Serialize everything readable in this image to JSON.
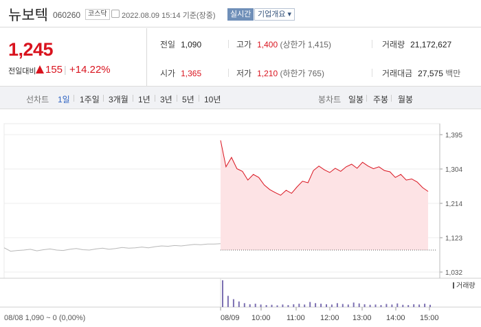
{
  "stock": {
    "name": "뉴보텍",
    "code": "060260",
    "market": "코스닥",
    "date_text": "2022.08.09 15:14 기준(장중)",
    "realtime_label": "실시간",
    "company_btn": "기업개요 ▾"
  },
  "price": {
    "current": "1,245",
    "change_label": "전일대비",
    "change": "155",
    "change_pct": "+14.22%"
  },
  "stats": {
    "prev_label": "전일",
    "prev": "1,090",
    "high_label": "고가",
    "high": "1,400",
    "upper_limit": "(상한가 1,415)",
    "volume_label": "거래량",
    "volume": "21,172,627",
    "open_label": "시가",
    "open": "1,365",
    "low_label": "저가",
    "low": "1,210",
    "lower_limit": "(하한가 765)",
    "amount_label": "거래대금",
    "amount": "27,575",
    "amount_unit": "백만"
  },
  "tabs": {
    "line_label": "선차트",
    "line": [
      "1일",
      "1주일",
      "3개월",
      "1년",
      "3년",
      "5년",
      "10년"
    ],
    "candle_label": "봉차트",
    "candle": [
      "일봉",
      "주봉",
      "월봉"
    ]
  },
  "colors": {
    "up": "#d9131e",
    "accent": "#2e63c2",
    "prev_line": "#b7b7b7",
    "area": "#fde3e5",
    "volume": "#7b6fb1"
  },
  "chart_data": {
    "type": "area",
    "y_ticks": [
      "1,395",
      "1,304",
      "1,214",
      "1,123",
      "1,032"
    ],
    "ylim": [
      1032,
      1395
    ],
    "x_ticks": [
      "08/09",
      "10:00",
      "11:00",
      "12:00",
      "13:00",
      "14:00",
      "15:00"
    ],
    "prev_day_label": "08/08 1,090 ~ 0 (0,00%)",
    "volume_label": "거래량",
    "prev_close": 1090,
    "prev_day": [
      1096,
      1087,
      1089,
      1090,
      1092,
      1088,
      1091,
      1093,
      1090,
      1089,
      1092,
      1094,
      1091,
      1090,
      1093,
      1095,
      1092,
      1094,
      1097,
      1095,
      1096,
      1098,
      1096,
      1099,
      1101,
      1100,
      1102,
      1101,
      1103,
      1105,
      1104,
      1106,
      1106,
      1107
    ],
    "today_times": [
      "09:00",
      "09:10",
      "09:20",
      "09:30",
      "09:40",
      "09:50",
      "10:00",
      "10:10",
      "10:20",
      "10:30",
      "10:40",
      "10:50",
      "11:00",
      "11:10",
      "11:20",
      "11:30",
      "11:40",
      "11:50",
      "12:00",
      "12:10",
      "12:20",
      "12:30",
      "12:40",
      "12:50",
      "13:00",
      "13:10",
      "13:20",
      "13:30",
      "13:40",
      "13:50",
      "14:00",
      "14:10",
      "14:20",
      "14:30",
      "14:40",
      "14:50",
      "15:00",
      "15:10",
      "15:14"
    ],
    "today": [
      1380,
      1310,
      1335,
      1305,
      1298,
      1275,
      1290,
      1282,
      1262,
      1250,
      1242,
      1235,
      1248,
      1240,
      1257,
      1272,
      1268,
      1300,
      1312,
      1302,
      1295,
      1306,
      1298,
      1310,
      1317,
      1306,
      1322,
      1312,
      1305,
      1310,
      1300,
      1297,
      1282,
      1290,
      1275,
      1278,
      1270,
      1255,
      1245
    ],
    "volume": [
      95,
      40,
      28,
      20,
      14,
      10,
      12,
      9,
      7,
      8,
      6,
      9,
      7,
      10,
      12,
      9,
      18,
      14,
      12,
      10,
      9,
      14,
      11,
      9,
      16,
      13,
      10,
      8,
      9,
      7,
      11,
      9,
      13,
      8,
      7,
      10,
      9,
      12,
      8
    ]
  }
}
